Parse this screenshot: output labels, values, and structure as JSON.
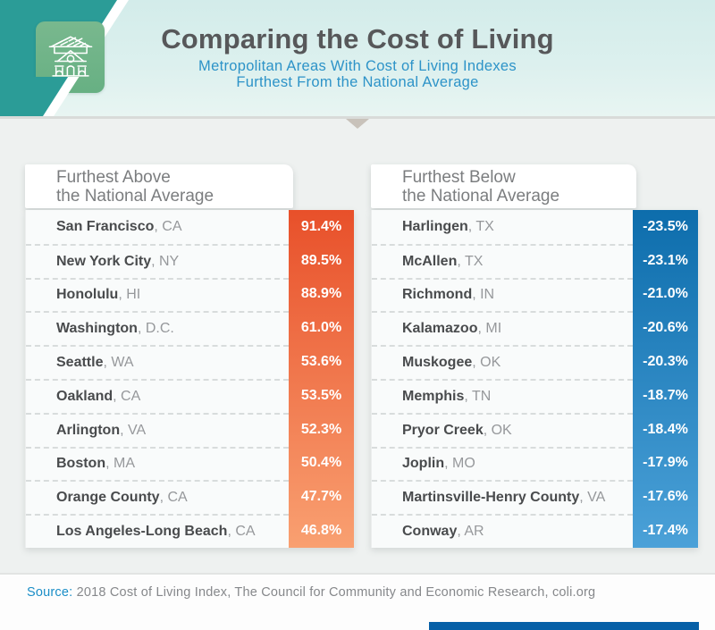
{
  "header": {
    "title": "Comparing the Cost of Living",
    "subtitle_line1": "Metropolitan Areas With Cost of Living Indexes",
    "subtitle_line2": "Furthest From the National Average",
    "icon": "house-icon"
  },
  "tables": {
    "above": {
      "header_line1": "Furthest Above",
      "header_line2": "the National Average",
      "rows": [
        {
          "city": "San Francisco",
          "state": "CA",
          "value": "91.4%"
        },
        {
          "city": "New York City",
          "state": "NY",
          "value": "89.5%"
        },
        {
          "city": "Honolulu",
          "state": "HI",
          "value": "88.9%"
        },
        {
          "city": "Washington",
          "state": "D.C.",
          "value": "61.0%"
        },
        {
          "city": "Seattle",
          "state": "WA",
          "value": "53.6%"
        },
        {
          "city": "Oakland",
          "state": "CA",
          "value": "53.5%"
        },
        {
          "city": "Arlington",
          "state": "VA",
          "value": "52.3%"
        },
        {
          "city": "Boston",
          "state": "MA",
          "value": "50.4%"
        },
        {
          "city": "Orange County",
          "state": "CA",
          "value": "47.7%"
        },
        {
          "city": "Los Angeles-Long Beach",
          "state": "CA",
          "value": "46.8%"
        }
      ]
    },
    "below": {
      "header_line1": "Furthest Below",
      "header_line2": "the National Average",
      "rows": [
        {
          "city": "Harlingen",
          "state": "TX",
          "value": "-23.5%"
        },
        {
          "city": "McAllen",
          "state": "TX",
          "value": "-23.1%"
        },
        {
          "city": "Richmond",
          "state": "IN",
          "value": "-21.0%"
        },
        {
          "city": "Kalamazoo",
          "state": "MI",
          "value": "-20.6%"
        },
        {
          "city": "Muskogee",
          "state": "OK",
          "value": "-20.3%"
        },
        {
          "city": "Memphis",
          "state": "TN",
          "value": "-18.7%"
        },
        {
          "city": "Pryor Creek",
          "state": "OK",
          "value": "-18.4%"
        },
        {
          "city": "Joplin",
          "state": "MO",
          "value": "-17.9%"
        },
        {
          "city": "Martinsville-Henry County",
          "state": "VA",
          "value": "-17.6%"
        },
        {
          "city": "Conway",
          "state": "AR",
          "value": "-17.4%"
        }
      ]
    }
  },
  "footer": {
    "source_label": "Source:",
    "source_text": " 2018 Cost of Living Index, The Council for Community and Economic Research, coli.org"
  },
  "colors": {
    "teal_band": "#2b9c97",
    "chip_green_top": "#79b88e",
    "chip_green_bottom": "#67b083",
    "subtitle_blue": "#2d93c8",
    "orange_top": "#e8502a",
    "orange_bottom": "#f9a071",
    "blue_top": "#0d6dac",
    "blue_bottom": "#4ba1d8",
    "source_label_blue": "#1b8ec7",
    "accent_bar_blue": "#0660a7"
  },
  "chart_data": [
    {
      "type": "table",
      "title": "Furthest Above the National Average",
      "categories": [
        "San Francisco, CA",
        "New York City, NY",
        "Honolulu, HI",
        "Washington, D.C.",
        "Seattle, WA",
        "Oakland, CA",
        "Arlington, VA",
        "Boston, MA",
        "Orange County, CA",
        "Los Angeles-Long Beach, CA"
      ],
      "values": [
        91.4,
        89.5,
        88.9,
        61.0,
        53.6,
        53.5,
        52.3,
        50.4,
        47.7,
        46.8
      ],
      "unit": "% vs national average cost of living index"
    },
    {
      "type": "table",
      "title": "Furthest Below the National Average",
      "categories": [
        "Harlingen, TX",
        "McAllen, TX",
        "Richmond, IN",
        "Kalamazoo, MI",
        "Muskogee, OK",
        "Memphis, TN",
        "Pryor Creek, OK",
        "Joplin, MO",
        "Martinsville-Henry County, VA",
        "Conway, AR"
      ],
      "values": [
        -23.5,
        -23.1,
        -21.0,
        -20.6,
        -20.3,
        -18.7,
        -18.4,
        -17.9,
        -17.6,
        -17.4
      ],
      "unit": "% vs national average cost of living index"
    }
  ]
}
